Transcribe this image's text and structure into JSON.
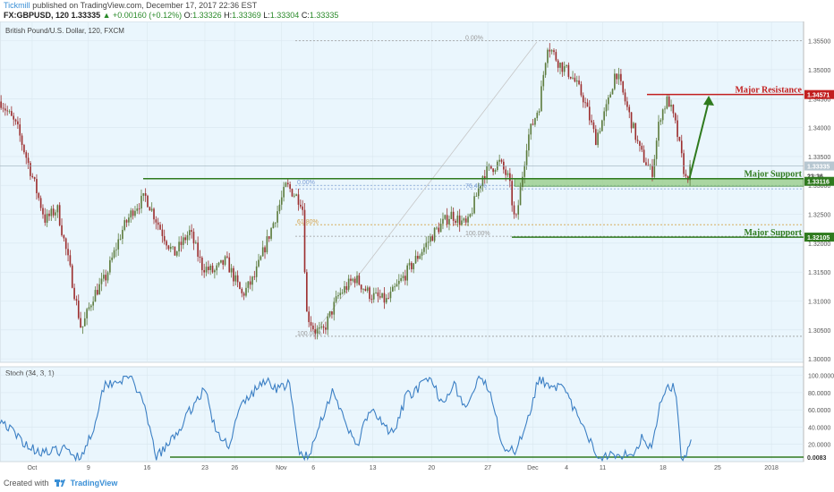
{
  "header": {
    "author": "Tickmill",
    "published": "published on TradingView.com, December 17, 2017 22:36 EST",
    "symbol": "FX:GBPUSD, 120",
    "last": "1.33335",
    "change": "▲ +0.00160 (+0.12%)",
    "o_label": "O:",
    "o_value": "1.33326",
    "h_label": "H:",
    "h_value": "1.33369",
    "l_label": "L:",
    "l_value": "1.33304",
    "c_label": "C:",
    "c_value": "1.33335"
  },
  "footer": {
    "created_with": "Created with",
    "brand": "TradingView"
  },
  "colors": {
    "background": "#eaf6fd",
    "candle_up": "#5d7c3e",
    "candle_down": "#9c2f2f",
    "support": "#2f7a1e",
    "resistance": "#c21f1f",
    "stoch_line": "#3b7fc4",
    "fib_gray": "#9a9a9a",
    "fib_orange": "#d4a24a",
    "fib_blue": "#7d9fd4"
  },
  "chart_data": [
    {
      "type": "candlestick",
      "title": "British Pound/U.S. Dollar, 120, FXCM",
      "ylim": [
        1.2994,
        1.3568
      ],
      "y_ticks": [
        "1.35500",
        "1.35000",
        "1.34500",
        "1.34000",
        "1.33500",
        "1.33000",
        "1.32500",
        "1.32000",
        "1.31500",
        "1.31000",
        "1.30500",
        "1.30000"
      ],
      "x_ticks": [
        "Oct",
        "9",
        "16",
        "23",
        "26",
        "Nov",
        "6",
        "13",
        "20",
        "27",
        "Dec",
        "4",
        "11",
        "18",
        "25",
        "2018"
      ],
      "x_tick_pos": [
        0.04,
        0.11,
        0.183,
        0.255,
        0.292,
        0.35,
        0.39,
        0.464,
        0.537,
        0.607,
        0.663,
        0.705,
        0.75,
        0.825,
        0.893,
        0.96
      ],
      "key_points": [
        {
          "t": 0.0,
          "p": 1.3445
        },
        {
          "t": 0.02,
          "p": 1.34
        },
        {
          "t": 0.04,
          "p": 1.331
        },
        {
          "t": 0.055,
          "p": 1.324
        },
        {
          "t": 0.07,
          "p": 1.326
        },
        {
          "t": 0.085,
          "p": 1.316
        },
        {
          "t": 0.1,
          "p": 1.305
        },
        {
          "t": 0.115,
          "p": 1.311
        },
        {
          "t": 0.13,
          "p": 1.314
        },
        {
          "t": 0.15,
          "p": 1.322
        },
        {
          "t": 0.165,
          "p": 1.326
        },
        {
          "t": 0.18,
          "p": 1.328
        },
        {
          "t": 0.2,
          "p": 1.322
        },
        {
          "t": 0.215,
          "p": 1.318
        },
        {
          "t": 0.235,
          "p": 1.322
        },
        {
          "t": 0.25,
          "p": 1.316
        },
        {
          "t": 0.265,
          "p": 1.315
        },
        {
          "t": 0.28,
          "p": 1.317
        },
        {
          "t": 0.3,
          "p": 1.311
        },
        {
          "t": 0.315,
          "p": 1.314
        },
        {
          "t": 0.33,
          "p": 1.32
        },
        {
          "t": 0.355,
          "p": 1.33
        },
        {
          "t": 0.375,
          "p": 1.327
        },
        {
          "t": 0.38,
          "p": 1.308
        },
        {
          "t": 0.39,
          "p": 1.305
        },
        {
          "t": 0.4,
          "p": 1.3045
        },
        {
          "t": 0.42,
          "p": 1.311
        },
        {
          "t": 0.44,
          "p": 1.314
        },
        {
          "t": 0.46,
          "p": 1.311
        },
        {
          "t": 0.48,
          "p": 1.31
        },
        {
          "t": 0.5,
          "p": 1.314
        },
        {
          "t": 0.52,
          "p": 1.318
        },
        {
          "t": 0.54,
          "p": 1.322
        },
        {
          "t": 0.56,
          "p": 1.325
        },
        {
          "t": 0.58,
          "p": 1.323
        },
        {
          "t": 0.6,
          "p": 1.332
        },
        {
          "t": 0.62,
          "p": 1.334
        },
        {
          "t": 0.632,
          "p": 1.331
        },
        {
          "t": 0.64,
          "p": 1.323
        },
        {
          "t": 0.655,
          "p": 1.338
        },
        {
          "t": 0.67,
          "p": 1.344
        },
        {
          "t": 0.68,
          "p": 1.3545
        },
        {
          "t": 0.695,
          "p": 1.351
        },
        {
          "t": 0.71,
          "p": 1.349
        },
        {
          "t": 0.725,
          "p": 1.345
        },
        {
          "t": 0.74,
          "p": 1.338
        },
        {
          "t": 0.755,
          "p": 1.344
        },
        {
          "t": 0.765,
          "p": 1.35
        },
        {
          "t": 0.78,
          "p": 1.343
        },
        {
          "t": 0.795,
          "p": 1.336
        },
        {
          "t": 0.81,
          "p": 1.332
        },
        {
          "t": 0.82,
          "p": 1.342
        },
        {
          "t": 0.83,
          "p": 1.345
        },
        {
          "t": 0.84,
          "p": 1.34
        },
        {
          "t": 0.852,
          "p": 1.331
        },
        {
          "t": 0.86,
          "p": 1.3334
        }
      ],
      "last_price": 1.33335,
      "levels": {
        "major_resistance": {
          "price": 1.34571,
          "label": "Major Resistance",
          "tag": "1.34571"
        },
        "major_support_1": {
          "price": 1.33116,
          "zone_low": 1.32985,
          "label": "Major Support",
          "tag": "1.33116"
        },
        "major_support_2": {
          "price": 1.32105,
          "label": "Major Support",
          "tag": "1.32105"
        },
        "last_tag": "1.33335",
        "countdown_tag": "23:36"
      },
      "fib_left": {
        "levels": [
          {
            "label": "0.00%",
            "price": 1.33
          },
          {
            "label": "61.80%",
            "price": 1.3232
          },
          {
            "label": "100.00%",
            "price": 1.3039
          }
        ]
      },
      "fib_right": {
        "levels": [
          {
            "label": "0.00%",
            "price": 1.355
          },
          {
            "label": "76.40%",
            "price": 1.3294
          },
          {
            "label": "100.00%",
            "price": 1.3212
          }
        ]
      },
      "arrow": {
        "from_t": 0.858,
        "from_p": 1.3312,
        "to_t": 0.882,
        "to_p": 1.3455
      }
    },
    {
      "type": "line",
      "title": "Stoch (34, 3, 1)",
      "ylim": [
        0,
        110
      ],
      "y_ticks": [
        "100.0000",
        "80.0000",
        "60.0000",
        "40.0000",
        "20.0000"
      ],
      "last_value": 20,
      "horizontal_line": {
        "value": 0.0083,
        "tag": "0.0083"
      },
      "key_points": [
        {
          "t": 0.0,
          "v": 50
        },
        {
          "t": 0.02,
          "v": 30
        },
        {
          "t": 0.04,
          "v": 15
        },
        {
          "t": 0.06,
          "v": 10
        },
        {
          "t": 0.08,
          "v": 14
        },
        {
          "t": 0.1,
          "v": 5
        },
        {
          "t": 0.115,
          "v": 35
        },
        {
          "t": 0.13,
          "v": 90
        },
        {
          "t": 0.15,
          "v": 95
        },
        {
          "t": 0.165,
          "v": 98
        },
        {
          "t": 0.18,
          "v": 60
        },
        {
          "t": 0.195,
          "v": 5
        },
        {
          "t": 0.21,
          "v": 20
        },
        {
          "t": 0.225,
          "v": 40
        },
        {
          "t": 0.24,
          "v": 65
        },
        {
          "t": 0.255,
          "v": 85
        },
        {
          "t": 0.27,
          "v": 30
        },
        {
          "t": 0.285,
          "v": 20
        },
        {
          "t": 0.3,
          "v": 65
        },
        {
          "t": 0.315,
          "v": 80
        },
        {
          "t": 0.33,
          "v": 95
        },
        {
          "t": 0.345,
          "v": 85
        },
        {
          "t": 0.36,
          "v": 90
        },
        {
          "t": 0.372,
          "v": 10
        },
        {
          "t": 0.385,
          "v": 5
        },
        {
          "t": 0.4,
          "v": 50
        },
        {
          "t": 0.415,
          "v": 85
        },
        {
          "t": 0.43,
          "v": 40
        },
        {
          "t": 0.445,
          "v": 20
        },
        {
          "t": 0.46,
          "v": 60
        },
        {
          "t": 0.475,
          "v": 45
        },
        {
          "t": 0.49,
          "v": 30
        },
        {
          "t": 0.505,
          "v": 75
        },
        {
          "t": 0.52,
          "v": 85
        },
        {
          "t": 0.535,
          "v": 95
        },
        {
          "t": 0.55,
          "v": 70
        },
        {
          "t": 0.565,
          "v": 90
        },
        {
          "t": 0.58,
          "v": 60
        },
        {
          "t": 0.595,
          "v": 95
        },
        {
          "t": 0.61,
          "v": 85
        },
        {
          "t": 0.625,
          "v": 20
        },
        {
          "t": 0.64,
          "v": 10
        },
        {
          "t": 0.655,
          "v": 45
        },
        {
          "t": 0.67,
          "v": 95
        },
        {
          "t": 0.685,
          "v": 90
        },
        {
          "t": 0.7,
          "v": 85
        },
        {
          "t": 0.715,
          "v": 60
        },
        {
          "t": 0.73,
          "v": 30
        },
        {
          "t": 0.745,
          "v": 5
        },
        {
          "t": 0.76,
          "v": 10
        },
        {
          "t": 0.775,
          "v": 8
        },
        {
          "t": 0.79,
          "v": 12
        },
        {
          "t": 0.8,
          "v": 30
        },
        {
          "t": 0.81,
          "v": 15
        },
        {
          "t": 0.82,
          "v": 60
        },
        {
          "t": 0.83,
          "v": 90
        },
        {
          "t": 0.84,
          "v": 85
        },
        {
          "t": 0.848,
          "v": 5
        },
        {
          "t": 0.855,
          "v": 12
        },
        {
          "t": 0.86,
          "v": 20
        }
      ]
    }
  ]
}
